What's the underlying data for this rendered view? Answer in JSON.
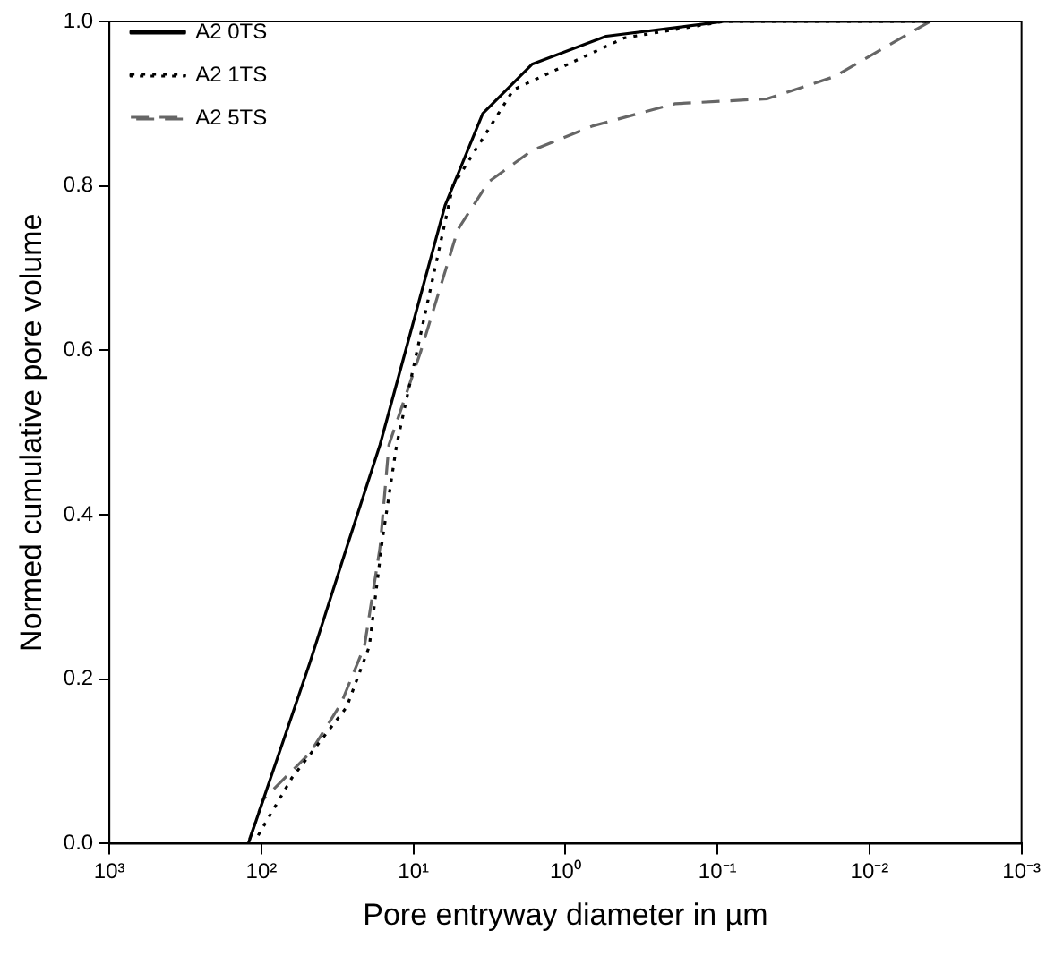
{
  "chart_data": {
    "type": "line",
    "xlabel": "Pore entryway diameter in µm",
    "ylabel": "Normed cumulative pore volume",
    "log": "x",
    "grid": false,
    "legend": "top left",
    "marker": "none",
    "xlim": [
      1000,
      0.001
    ],
    "xticks": [
      {
        "value": 1000,
        "label": "10³"
      },
      {
        "value": 100,
        "label": "10²"
      },
      {
        "value": 10,
        "label": "10¹"
      },
      {
        "value": 1,
        "label": "10⁰"
      },
      {
        "value": 0.1,
        "label": "10⁻¹"
      },
      {
        "value": 0.01,
        "label": "10⁻²"
      },
      {
        "value": 0.001,
        "label": "10⁻³"
      }
    ],
    "ylim": [
      0,
      1
    ],
    "yticks": [
      {
        "value": 0,
        "label": "0.0"
      },
      {
        "value": 0.2,
        "label": "0.2"
      },
      {
        "value": 0.4,
        "label": "0.4"
      },
      {
        "value": 0.6,
        "label": "0.6"
      },
      {
        "value": 0.8,
        "label": "0.8"
      },
      {
        "value": 1,
        "label": "1.0"
      }
    ],
    "series": [
      {
        "name": "A2 0TS",
        "color": "#000000",
        "line_style": "solid",
        "x": [
          122,
          97,
          48,
          27.5,
          16.6,
          6.2,
          3.5,
          1.66,
          0.54,
          0.091,
          0.004
        ],
        "values": [
          0,
          0.054,
          0.22,
          0.36,
          0.485,
          0.776,
          0.888,
          0.948,
          0.982,
          1,
          1
        ]
      },
      {
        "name": "A2 1TS",
        "color": "#000000",
        "line_style": "dotted",
        "x": [
          105,
          63,
          27.5,
          19.5,
          16,
          12.9,
          5.5,
          2.2,
          0.41,
          0.091,
          0.004
        ],
        "values": [
          0.01,
          0.08,
          0.166,
          0.24,
          0.37,
          0.485,
          0.8,
          0.917,
          0.98,
          1,
          1
        ]
      },
      {
        "name": "A2 5TS",
        "color": "#666666",
        "line_style": "dashed",
        "x": [
          120,
          97,
          48,
          30,
          21,
          16.6,
          14.5,
          8.9,
          5.1,
          3.2,
          1.66,
          0.66,
          0.19,
          0.047,
          0.017,
          0.004
        ],
        "values": [
          0.005,
          0.054,
          0.11,
          0.17,
          0.24,
          0.36,
          0.485,
          0.6,
          0.747,
          0.805,
          0.843,
          0.873,
          0.9,
          0.906,
          0.933,
          1
        ]
      }
    ]
  }
}
